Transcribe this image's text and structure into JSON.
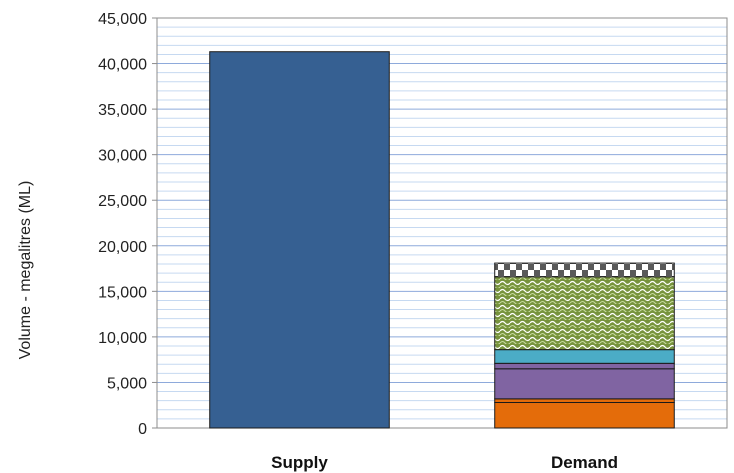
{
  "chart_data": {
    "type": "bar",
    "stacked": true,
    "categories": [
      "Supply",
      "Demand"
    ],
    "ylabel": "Volume - megalitres (ML)",
    "ylim": [
      0,
      45000
    ],
    "yticks": [
      0,
      5000,
      10000,
      15000,
      20000,
      25000,
      30000,
      35000,
      40000,
      45000
    ],
    "ytick_labels": [
      "0",
      "5,000",
      "10,000",
      "15,000",
      "20,000",
      "25,000",
      "30,000",
      "35,000",
      "40,000",
      "45,000"
    ],
    "minor_grid_step": 1000,
    "grid": true,
    "legend": "none",
    "series": [
      {
        "values": [
          41300,
          0
        ],
        "color": "#366092",
        "pattern": "solid"
      },
      {
        "values": [
          0,
          2800
        ],
        "color": "#E46C0A",
        "pattern": "solid"
      },
      {
        "values": [
          0,
          400
        ],
        "color": "#E46C0A",
        "pattern": "solid"
      },
      {
        "values": [
          0,
          3300
        ],
        "color": "#8064A2",
        "pattern": "solid"
      },
      {
        "values": [
          0,
          600
        ],
        "color": "#8064A2",
        "pattern": "solid"
      },
      {
        "values": [
          0,
          1500
        ],
        "color": "#4BACC6",
        "pattern": "solid"
      },
      {
        "values": [
          0,
          8000
        ],
        "color": "#77933C",
        "pattern": "wave"
      },
      {
        "values": [
          0,
          1500
        ],
        "color": "#595959",
        "pattern": "checker"
      }
    ]
  }
}
